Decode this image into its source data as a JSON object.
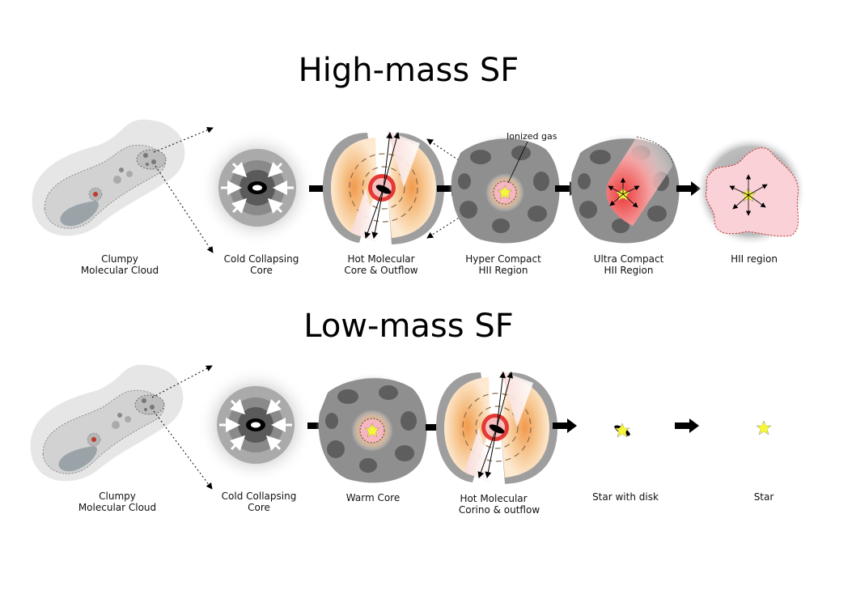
{
  "titles": {
    "high": "High-mass SF",
    "low": "Low-mass SF"
  },
  "annotations": {
    "ionized_gas": "Ionized gas"
  },
  "high_stages": [
    {
      "line1": "Clumpy",
      "line2": "Molecular Cloud"
    },
    {
      "line1": "Cold Collapsing",
      "line2": "Core"
    },
    {
      "line1": "Hot Molecular",
      "line2": "Core & Outflow"
    },
    {
      "line1": "Hyper Compact",
      "line2": "HII Region"
    },
    {
      "line1": "Ultra Compact",
      "line2": "HII Region"
    },
    {
      "line1": "HII region",
      "line2": ""
    }
  ],
  "low_stages": [
    {
      "line1": "Clumpy",
      "line2": "Molecular Cloud"
    },
    {
      "line1": "Cold Collapsing",
      "line2": "Core"
    },
    {
      "line1": "Warm Core",
      "line2": ""
    },
    {
      "line1": "Hot Molecular",
      "line2": "Corino & outflow"
    },
    {
      "line1": "Star with disk",
      "line2": ""
    },
    {
      "line1": "Star",
      "line2": ""
    }
  ],
  "colors": {
    "cloud_outer": "#e6e6e6",
    "cloud_mid": "#cfcfcf",
    "cloud_inner": "#9aa3a8",
    "rock": "#8c8c8c",
    "warm_orange": "#f4b56b",
    "hot_red": "#e53935",
    "ionized_pink": "#f7b6bf",
    "star_yellow": "#f5f53a",
    "arrow": "#000000"
  }
}
